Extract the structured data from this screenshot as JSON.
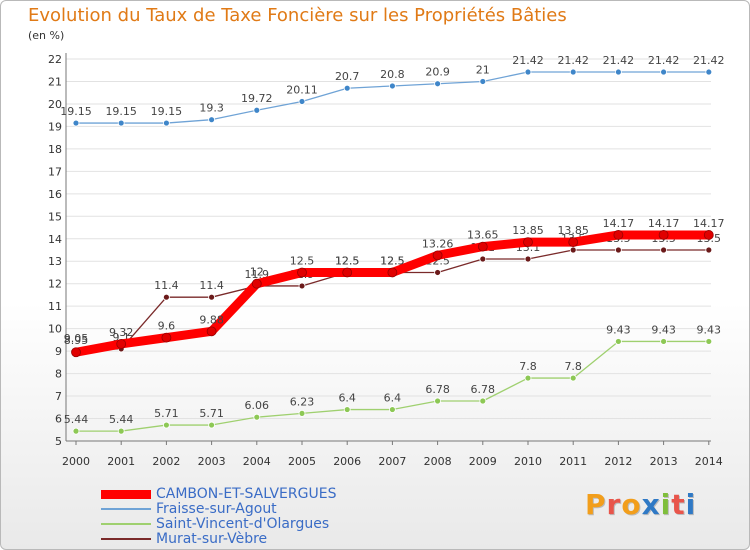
{
  "title": "Evolution du Taux de Taxe Foncière sur les Propriétés Bâties",
  "subtitle": "(en %)",
  "logo": {
    "text": "Proxiti",
    "letters": [
      "P",
      "r",
      "o",
      "x",
      "i",
      "t",
      "i"
    ],
    "colors": [
      "#f29e1b",
      "#e8554b",
      "#f29e1b",
      "#2f79c5",
      "#7fbe3b",
      "#e8554b",
      "#2f79c5"
    ]
  },
  "chart_data": {
    "type": "line",
    "title": "Evolution du Taux de Taxe Foncière sur les Propriétés Bâties",
    "ylabel": "(en %)",
    "xlabel": "",
    "x": [
      2000,
      2001,
      2002,
      2003,
      2004,
      2005,
      2006,
      2007,
      2008,
      2009,
      2010,
      2011,
      2012,
      2013,
      2014
    ],
    "x_tick_labels": [
      "2000",
      "2001",
      "2002",
      "2003",
      "2004",
      "2005",
      "2006",
      "2007",
      "2008",
      "2009",
      "2010",
      "2011",
      "2012",
      "2013",
      "2014"
    ],
    "y_ticks": [
      5,
      6,
      7,
      8,
      9,
      10,
      11,
      12,
      13,
      14,
      15,
      16,
      17,
      18,
      19,
      20,
      21,
      22
    ],
    "ylim": [
      5,
      22
    ],
    "grid": true,
    "legend_position": "bottom-left",
    "series": [
      {
        "name": "Fraisse-sur-Agout",
        "color": "#6fa3d6",
        "dot": "#3f86c9",
        "values": [
          19.15,
          19.15,
          19.15,
          19.3,
          19.72,
          20.11,
          20.7,
          20.8,
          20.9,
          21,
          21.42,
          21.42,
          21.42,
          21.42,
          21.42
        ],
        "labels": [
          "19.15",
          "19.15",
          "19.15",
          "19.3",
          "19.72",
          "20.11",
          "20.7",
          "20.8",
          "20.9",
          "21",
          "21.42",
          "21.42",
          "21.42",
          "21.42",
          "21.42"
        ]
      },
      {
        "name": "Saint-Vincent-d'Olargues",
        "color": "#9fd06f",
        "dot": "#8dc855",
        "values": [
          5.44,
          5.44,
          5.71,
          5.71,
          6.06,
          6.23,
          6.4,
          6.4,
          6.78,
          6.78,
          7.8,
          7.8,
          9.43,
          9.43,
          9.43
        ],
        "labels": [
          "5.44",
          "5.44",
          "5.71",
          "5.71",
          "6.06",
          "6.23",
          "6.4",
          "6.4",
          "6.78",
          "6.78",
          "7.8",
          "7.8",
          "9.43",
          "9.43",
          "9.43"
        ]
      },
      {
        "name": "Murat-sur-Vèbre",
        "color": "#7a2a2a",
        "dot": "#6b1a1a",
        "values": [
          9.05,
          9.1,
          11.4,
          11.4,
          11.9,
          11.9,
          12.5,
          12.5,
          12.5,
          13.1,
          13.1,
          13.5,
          13.5,
          13.5,
          13.5
        ],
        "labels": [
          "9.05",
          "9.1",
          "11.4",
          "11.4",
          "11.9",
          "11.9",
          "12.5",
          "12.5",
          "12.5",
          "13.1",
          "13.1",
          "13.5",
          "13.5",
          "13.5",
          "13.5"
        ]
      },
      {
        "name": "CAMBON-ET-SALVERGUES",
        "color": "#ff0000",
        "dot": "#e00000",
        "thick": true,
        "values": [
          8.95,
          9.32,
          9.6,
          9.88,
          12,
          12.5,
          12.5,
          12.5,
          13.26,
          13.65,
          13.85,
          13.85,
          14.17,
          14.17,
          14.17
        ],
        "labels": [
          "8.95",
          "9.32",
          "9.6",
          "9.88",
          "12",
          "12.5",
          "12.5",
          "12.5",
          "13.26",
          "13.65",
          "13.85",
          "13.85",
          "14.17",
          "14.17",
          "14.17"
        ]
      }
    ],
    "legend": [
      "CAMBON-ET-SALVERGUES",
      "Fraisse-sur-Agout",
      "Saint-Vincent-d'Olargues",
      "Murat-sur-Vèbre"
    ]
  }
}
